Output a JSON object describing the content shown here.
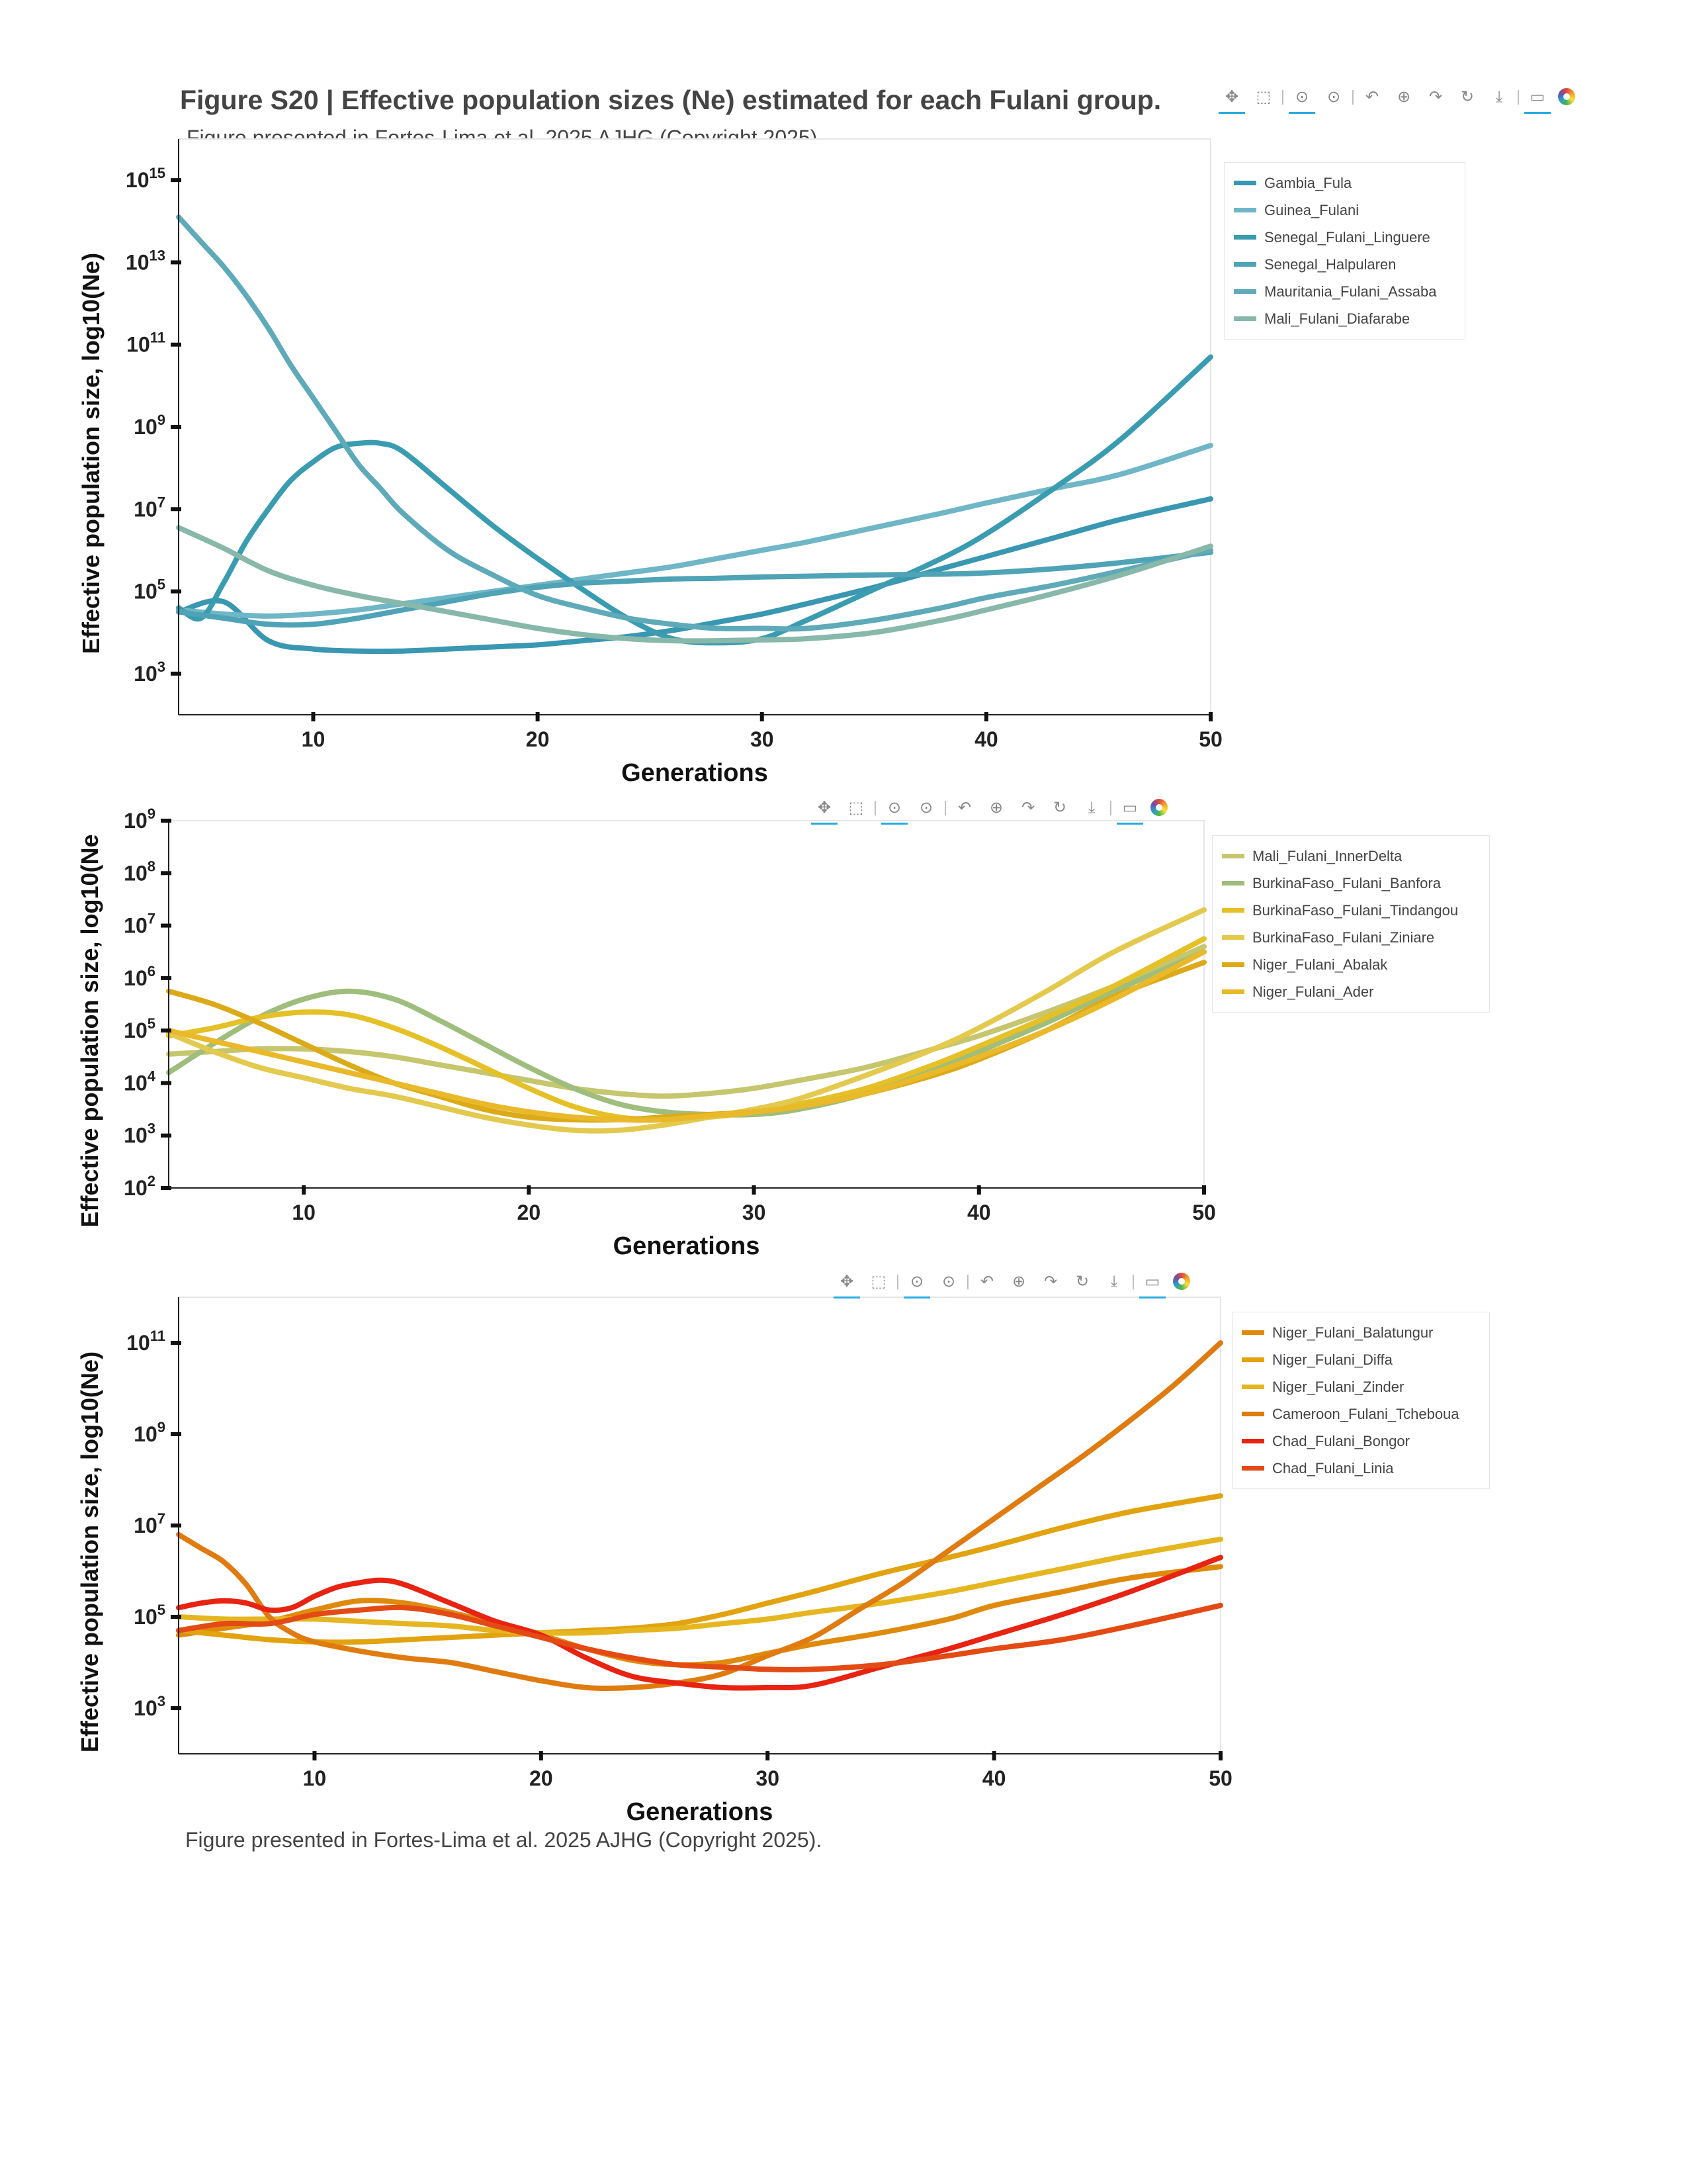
{
  "figure": {
    "title": "Figure S20 | Effective population sizes (Ne) estimated for each Fulani group.",
    "note_top": "Figure presented in Fortes-Lima et al. 2025 AJHG (Copyright 2025).",
    "note_bottom": "Figure presented in Fortes-Lima et al. 2025 AJHG (Copyright 2025)."
  },
  "toolbar": {
    "icons": [
      "pan-icon",
      "box-zoom-icon",
      "x-wheel-zoom-icon",
      "y-wheel-zoom-icon",
      "undo-icon",
      "zoom-in-icon",
      "redo-icon",
      "reset-icon",
      "save-icon",
      "hover-icon",
      "bokeh-logo-icon"
    ]
  },
  "chart_data": [
    {
      "type": "line",
      "xlabel": "Generations",
      "ylabel": "Effective population size, log10(Ne)",
      "xlim": [
        4,
        50
      ],
      "x_ticks": [
        10,
        20,
        30,
        40,
        50
      ],
      "y_scale": "log10",
      "ylim_log10": [
        2.0,
        16.0
      ],
      "y_ticks_log10": [
        3,
        5,
        7,
        9,
        11,
        13,
        15
      ],
      "legend_position": "right",
      "series": [
        {
          "name": "Gambia_Fula",
          "color": "#3a97b1",
          "x": [
            4,
            6,
            8,
            10,
            12,
            14,
            16,
            18,
            20,
            22,
            24,
            26,
            28,
            30,
            32,
            35,
            38,
            40,
            43,
            46,
            50
          ],
          "y_log10": [
            4.5,
            4.75,
            3.8,
            3.6,
            3.55,
            3.55,
            3.6,
            3.65,
            3.7,
            3.8,
            3.9,
            4.05,
            4.25,
            4.45,
            4.7,
            5.1,
            5.55,
            5.85,
            6.3,
            6.75,
            7.25
          ]
        },
        {
          "name": "Guinea_Fulani",
          "color": "#6fb6c6",
          "x": [
            4,
            6,
            8,
            10,
            12,
            14,
            16,
            18,
            20,
            22,
            24,
            26,
            28,
            30,
            32,
            35,
            38,
            40,
            43,
            46,
            50
          ],
          "y_log10": [
            4.55,
            4.45,
            4.4,
            4.45,
            4.55,
            4.7,
            4.85,
            5.0,
            5.15,
            5.3,
            5.45,
            5.6,
            5.8,
            6.0,
            6.2,
            6.55,
            6.9,
            7.15,
            7.5,
            7.85,
            8.55
          ]
        },
        {
          "name": "Senegal_Fulani_Linguere",
          "color": "#3a9cb0",
          "x": [
            4,
            5,
            6,
            7,
            8,
            9,
            10,
            11,
            12,
            13,
            14,
            16,
            18,
            20,
            22,
            24,
            26,
            28,
            30,
            32,
            35,
            38,
            40,
            43,
            46,
            50
          ],
          "y_log10": [
            4.6,
            4.35,
            5.2,
            6.2,
            7.0,
            7.7,
            8.15,
            8.5,
            8.6,
            8.6,
            8.4,
            7.5,
            6.6,
            5.8,
            5.05,
            4.35,
            3.85,
            3.75,
            3.85,
            4.3,
            5.05,
            5.8,
            6.4,
            7.5,
            8.7,
            10.7
          ]
        },
        {
          "name": "Senegal_Halpularen",
          "color": "#4fa3b6",
          "x": [
            4,
            6,
            8,
            10,
            12,
            14,
            16,
            18,
            20,
            22,
            24,
            26,
            28,
            30,
            32,
            35,
            38,
            40,
            43,
            46,
            50
          ],
          "y_log10": [
            4.5,
            4.35,
            4.2,
            4.2,
            4.35,
            4.55,
            4.75,
            4.95,
            5.1,
            5.2,
            5.25,
            5.3,
            5.32,
            5.35,
            5.37,
            5.4,
            5.42,
            5.45,
            5.55,
            5.7,
            5.95
          ]
        },
        {
          "name": "Mauritania_Fulani_Assaba",
          "color": "#5eaab9",
          "x": [
            4,
            5,
            6,
            7,
            8,
            9,
            10,
            11,
            12,
            13,
            14,
            16,
            18,
            20,
            22,
            24,
            26,
            28,
            30,
            32,
            35,
            38,
            40,
            43,
            46,
            50
          ],
          "y_log10": [
            14.1,
            13.5,
            12.9,
            12.2,
            11.4,
            10.5,
            9.7,
            8.9,
            8.1,
            7.5,
            6.9,
            6.0,
            5.4,
            4.9,
            4.6,
            4.35,
            4.2,
            4.1,
            4.1,
            4.1,
            4.3,
            4.6,
            4.85,
            5.15,
            5.5,
            6.0
          ]
        },
        {
          "name": "Mali_Fulani_Diafarabe",
          "color": "#88b8a9",
          "x": [
            4,
            6,
            8,
            10,
            12,
            14,
            16,
            18,
            20,
            22,
            24,
            26,
            28,
            30,
            32,
            35,
            38,
            40,
            43,
            46,
            50
          ],
          "y_log10": [
            6.55,
            6.05,
            5.5,
            5.15,
            4.9,
            4.7,
            4.5,
            4.3,
            4.1,
            3.95,
            3.85,
            3.8,
            3.8,
            3.82,
            3.85,
            4.0,
            4.3,
            4.55,
            4.95,
            5.4,
            6.1
          ]
        }
      ]
    },
    {
      "type": "line",
      "xlabel": "Generations",
      "ylabel": "Effective population size, log10(Ne",
      "xlim": [
        4,
        50
      ],
      "x_ticks": [
        10,
        20,
        30,
        40,
        50
      ],
      "y_scale": "log10",
      "ylim_log10": [
        2,
        9
      ],
      "y_ticks_log10": [
        2,
        3,
        4,
        5,
        6,
        7,
        8,
        9
      ],
      "legend_position": "right",
      "series": [
        {
          "name": "Mali_Fulani_InnerDelta",
          "color": "#c5c66e",
          "x": [
            4,
            6,
            8,
            10,
            12,
            14,
            16,
            18,
            20,
            22,
            24,
            26,
            28,
            30,
            32,
            35,
            38,
            40,
            43,
            46,
            50
          ],
          "y_log10": [
            4.55,
            4.6,
            4.65,
            4.65,
            4.6,
            4.5,
            4.35,
            4.2,
            4.05,
            3.9,
            3.8,
            3.75,
            3.8,
            3.9,
            4.05,
            4.3,
            4.65,
            4.9,
            5.35,
            5.85,
            6.6
          ]
        },
        {
          "name": "BurkinaFaso_Fulani_Banfora",
          "color": "#9fbd7c",
          "x": [
            4,
            6,
            8,
            10,
            12,
            14,
            16,
            18,
            20,
            22,
            24,
            26,
            28,
            30,
            32,
            35,
            38,
            40,
            43,
            46,
            50
          ],
          "y_log10": [
            4.2,
            4.75,
            5.25,
            5.6,
            5.75,
            5.6,
            5.2,
            4.75,
            4.3,
            3.9,
            3.6,
            3.45,
            3.4,
            3.4,
            3.5,
            3.8,
            4.25,
            4.6,
            5.15,
            5.75,
            6.5
          ]
        },
        {
          "name": "BurkinaFaso_Fulani_Tindangou",
          "color": "#e5c026",
          "x": [
            4,
            6,
            8,
            10,
            12,
            14,
            16,
            18,
            20,
            22,
            24,
            26,
            28,
            30,
            32,
            35,
            38,
            40,
            43,
            46,
            50
          ],
          "y_log10": [
            4.9,
            5.05,
            5.25,
            5.35,
            5.3,
            5.05,
            4.7,
            4.3,
            3.9,
            3.55,
            3.35,
            3.3,
            3.35,
            3.45,
            3.6,
            3.9,
            4.35,
            4.7,
            5.25,
            5.85,
            6.75
          ]
        },
        {
          "name": "BurkinaFaso_Fulani_Ziniare",
          "color": "#e3c94e",
          "x": [
            4,
            6,
            8,
            10,
            12,
            14,
            16,
            18,
            20,
            22,
            24,
            26,
            28,
            30,
            32,
            35,
            38,
            40,
            43,
            46,
            50
          ],
          "y_log10": [
            4.95,
            4.6,
            4.3,
            4.1,
            3.9,
            3.75,
            3.55,
            3.35,
            3.2,
            3.1,
            3.1,
            3.2,
            3.35,
            3.5,
            3.7,
            4.15,
            4.65,
            5.05,
            5.75,
            6.5,
            7.3
          ]
        },
        {
          "name": "Niger_Fulani_Abalak",
          "color": "#dcaa19",
          "x": [
            4,
            6,
            8,
            10,
            12,
            14,
            16,
            18,
            20,
            22,
            24,
            26,
            28,
            30,
            32,
            35,
            38,
            40,
            43,
            46,
            50
          ],
          "y_log10": [
            5.75,
            5.5,
            5.15,
            4.75,
            4.35,
            4.0,
            3.75,
            3.5,
            3.35,
            3.3,
            3.3,
            3.35,
            3.4,
            3.45,
            3.55,
            3.8,
            4.15,
            4.45,
            5.0,
            5.65,
            6.3
          ]
        },
        {
          "name": "Niger_Fulani_Ader",
          "color": "#e9b92a",
          "x": [
            4,
            6,
            8,
            10,
            12,
            14,
            16,
            18,
            20,
            22,
            24,
            26,
            28,
            30,
            32,
            35,
            38,
            40,
            43,
            46,
            50
          ],
          "y_log10": [
            5.0,
            4.8,
            4.6,
            4.4,
            4.2,
            4.0,
            3.8,
            3.6,
            3.45,
            3.35,
            3.3,
            3.3,
            3.38,
            3.45,
            3.55,
            3.8,
            4.2,
            4.5,
            5.0,
            5.6,
            6.5
          ]
        }
      ]
    },
    {
      "type": "line",
      "xlabel": "Generations",
      "ylabel": "Effective population size, log10(Ne)",
      "xlim": [
        4,
        50
      ],
      "x_ticks": [
        10,
        20,
        30,
        40,
        50
      ],
      "y_scale": "log10",
      "ylim_log10": [
        2.0,
        12.0
      ],
      "y_ticks_log10": [
        3,
        5,
        7,
        9,
        11
      ],
      "legend_position": "right",
      "series": [
        {
          "name": "Niger_Fulani_Balatungur",
          "color": "#e08a0c",
          "x": [
            4,
            6,
            8,
            10,
            12,
            14,
            16,
            18,
            20,
            22,
            24,
            26,
            28,
            30,
            32,
            35,
            38,
            40,
            43,
            46,
            50
          ],
          "y_log10": [
            4.6,
            4.75,
            4.9,
            5.15,
            5.35,
            5.3,
            5.1,
            4.85,
            4.6,
            4.3,
            4.05,
            3.95,
            4.0,
            4.2,
            4.4,
            4.65,
            4.95,
            5.25,
            5.55,
            5.85,
            6.1
          ]
        },
        {
          "name": "Niger_Fulani_Diffa",
          "color": "#e2a30f",
          "x": [
            4,
            6,
            8,
            10,
            12,
            14,
            16,
            18,
            20,
            22,
            24,
            26,
            28,
            30,
            32,
            35,
            38,
            40,
            43,
            46,
            50
          ],
          "y_log10": [
            4.7,
            4.6,
            4.5,
            4.45,
            4.45,
            4.5,
            4.55,
            4.6,
            4.65,
            4.7,
            4.75,
            4.85,
            5.05,
            5.3,
            5.55,
            5.95,
            6.3,
            6.55,
            6.95,
            7.3,
            7.65
          ]
        },
        {
          "name": "Niger_Fulani_Zinder",
          "color": "#e5b620",
          "x": [
            4,
            6,
            8,
            10,
            12,
            14,
            16,
            18,
            20,
            22,
            24,
            26,
            28,
            30,
            32,
            35,
            38,
            40,
            43,
            46,
            50
          ],
          "y_log10": [
            5.0,
            4.95,
            4.95,
            4.95,
            4.9,
            4.85,
            4.8,
            4.7,
            4.65,
            4.65,
            4.7,
            4.75,
            4.85,
            4.95,
            5.1,
            5.3,
            5.55,
            5.75,
            6.05,
            6.35,
            6.7
          ]
        },
        {
          "name": "Cameroon_Fulani_Tcheboua",
          "color": "#e07b10",
          "x": [
            4,
            5,
            6,
            7,
            8,
            9,
            10,
            12,
            14,
            16,
            18,
            20,
            22,
            24,
            26,
            28,
            30,
            32,
            34,
            36,
            38,
            40,
            42,
            44,
            46,
            48,
            50
          ],
          "y_log10": [
            6.8,
            6.5,
            6.2,
            5.7,
            5.0,
            4.65,
            4.45,
            4.25,
            4.1,
            4.0,
            3.8,
            3.6,
            3.45,
            3.45,
            3.55,
            3.75,
            4.15,
            4.55,
            5.15,
            5.75,
            6.45,
            7.15,
            7.85,
            8.55,
            9.3,
            10.1,
            11.0
          ]
        },
        {
          "name": "Chad_Fulani_Bongor",
          "color": "#e82312",
          "x": [
            4,
            5,
            6,
            7,
            8,
            9,
            10,
            11,
            12,
            13,
            14,
            16,
            18,
            20,
            22,
            24,
            26,
            28,
            30,
            32,
            35,
            38,
            40,
            43,
            46,
            50
          ],
          "y_log10": [
            5.2,
            5.3,
            5.35,
            5.3,
            5.15,
            5.2,
            5.45,
            5.65,
            5.75,
            5.8,
            5.7,
            5.3,
            4.9,
            4.6,
            4.1,
            3.7,
            3.55,
            3.45,
            3.45,
            3.5,
            3.9,
            4.3,
            4.6,
            5.05,
            5.55,
            6.3
          ]
        },
        {
          "name": "Chad_Fulani_Linia",
          "color": "#e34a14",
          "x": [
            4,
            6,
            8,
            10,
            12,
            14,
            16,
            18,
            20,
            22,
            24,
            26,
            28,
            30,
            32,
            35,
            38,
            40,
            43,
            46,
            50
          ],
          "y_log10": [
            4.7,
            4.85,
            4.85,
            5.05,
            5.15,
            5.2,
            5.05,
            4.8,
            4.55,
            4.3,
            4.1,
            3.95,
            3.9,
            3.85,
            3.85,
            3.95,
            4.15,
            4.3,
            4.5,
            4.8,
            5.25
          ]
        }
      ]
    }
  ]
}
